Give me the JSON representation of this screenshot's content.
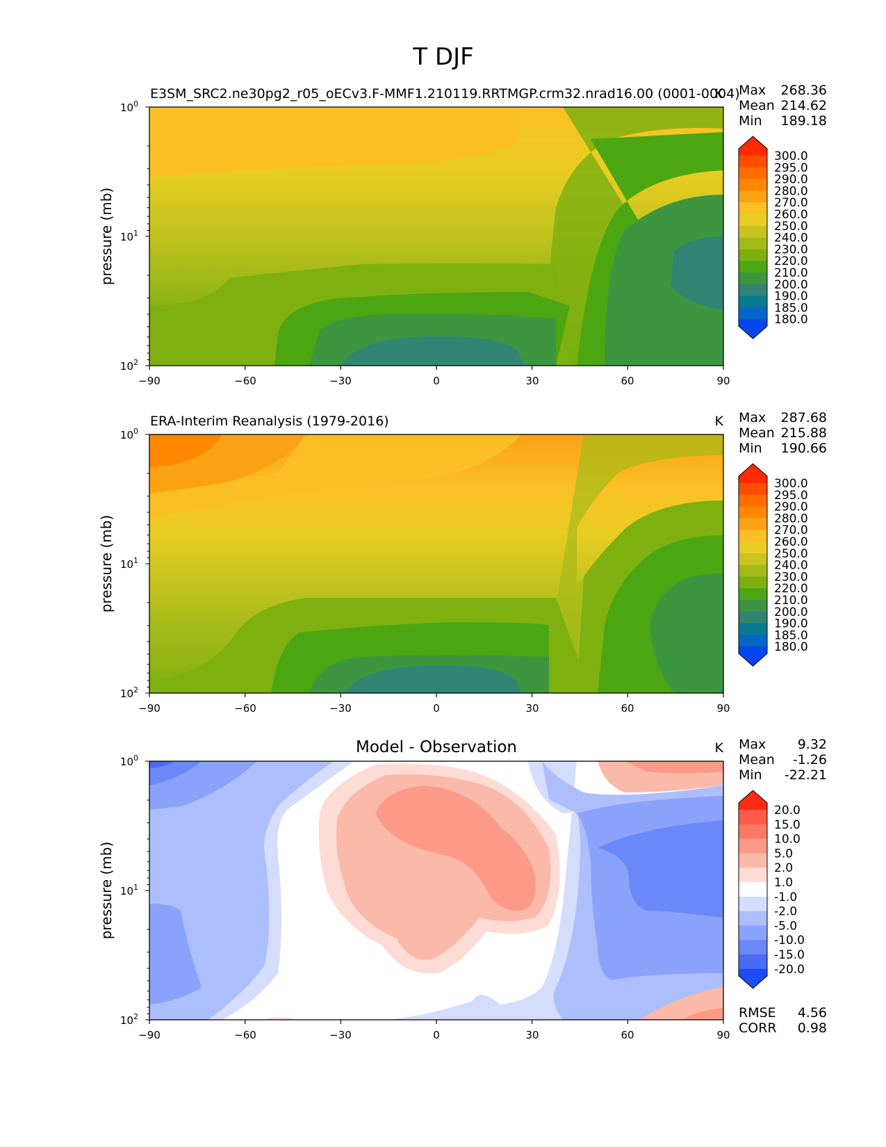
{
  "figure": {
    "title": "T DJF"
  },
  "chart_data": [
    {
      "type": "heatmap",
      "title": "E3SM_SRC2.ne30pg2_r05_oECv3.F-MMF1.210119.RRTMGP.crm32.nrad16.00 (0001-0004)",
      "units": "K",
      "xlabel": "",
      "ylabel": "pressure (mb)",
      "x_ticks": [
        "−90",
        "−60",
        "−30",
        "0",
        "30",
        "60",
        "90"
      ],
      "y_ticks": [
        {
          "base": "10",
          "exp": "0"
        },
        {
          "base": "10",
          "exp": "1"
        },
        {
          "base": "10",
          "exp": "2"
        }
      ],
      "xlim": [
        -90,
        90
      ],
      "ylim": [
        100,
        1
      ],
      "yscale": "log",
      "stats": {
        "max_label": "Max",
        "max": "268.36",
        "mean_label": "Mean",
        "mean": "214.62",
        "min_label": "Min",
        "min": "189.18"
      },
      "colorbar": {
        "labels": [
          "300.0",
          "295.0",
          "290.0",
          "280.0",
          "270.0",
          "260.0",
          "250.0",
          "240.0",
          "230.0",
          "220.0",
          "210.0",
          "200.0",
          "190.0",
          "185.0",
          "180.0"
        ],
        "colors": [
          "#ff2a00",
          "#ff4d00",
          "#ff6d00",
          "#ff8800",
          "#fba214",
          "#fbbf24",
          "#e9cc22",
          "#c9c41f",
          "#a4ba18",
          "#7eb010",
          "#4ca611",
          "#3d963f",
          "#318573",
          "#087990",
          "#0466c9",
          "#0545ee"
        ]
      }
    },
    {
      "type": "heatmap",
      "title": "ERA-Interim Reanalysis (1979-2016)",
      "units": "K",
      "xlabel": "",
      "ylabel": "pressure (mb)",
      "x_ticks": [
        "−90",
        "−60",
        "−30",
        "0",
        "30",
        "60",
        "90"
      ],
      "y_ticks": [
        {
          "base": "10",
          "exp": "0"
        },
        {
          "base": "10",
          "exp": "1"
        },
        {
          "base": "10",
          "exp": "2"
        }
      ],
      "xlim": [
        -90,
        90
      ],
      "ylim": [
        100,
        1
      ],
      "yscale": "log",
      "stats": {
        "max_label": "Max",
        "max": "287.68",
        "mean_label": "Mean",
        "mean": "215.88",
        "min_label": "Min",
        "min": "190.66"
      },
      "colorbar": {
        "labels": [
          "300.0",
          "295.0",
          "290.0",
          "280.0",
          "270.0",
          "260.0",
          "250.0",
          "240.0",
          "230.0",
          "220.0",
          "210.0",
          "200.0",
          "190.0",
          "185.0",
          "180.0"
        ],
        "colors": [
          "#ff2a00",
          "#ff4d00",
          "#ff6d00",
          "#ff8800",
          "#fba214",
          "#fbbf24",
          "#e9cc22",
          "#c9c41f",
          "#a4ba18",
          "#7eb010",
          "#4ca611",
          "#3d963f",
          "#318573",
          "#087990",
          "#0466c9",
          "#0545ee"
        ]
      }
    },
    {
      "type": "heatmap",
      "title": "Model - Observation",
      "units": "K",
      "xlabel": "",
      "ylabel": "pressure (mb)",
      "x_ticks": [
        "−90",
        "−60",
        "−30",
        "0",
        "30",
        "60",
        "90"
      ],
      "y_ticks": [
        {
          "base": "10",
          "exp": "0"
        },
        {
          "base": "10",
          "exp": "1"
        },
        {
          "base": "10",
          "exp": "2"
        }
      ],
      "xlim": [
        -90,
        90
      ],
      "ylim": [
        100,
        1
      ],
      "yscale": "log",
      "stats": {
        "max_label": "Max",
        "max": "9.32",
        "mean_label": "Mean",
        "mean": "-1.26",
        "min_label": "Min",
        "min": "-22.21"
      },
      "extra_stats": {
        "rmse_label": "RMSE",
        "rmse": "4.56",
        "corr_label": "CORR",
        "corr": "0.98"
      },
      "colorbar": {
        "labels": [
          "20.0",
          "15.0",
          "10.0",
          "5.0",
          "2.0",
          "1.0",
          "-1.0",
          "-2.0",
          "-5.0",
          "-10.0",
          "-15.0",
          "-20.0"
        ],
        "colors": [
          "#ff2a10",
          "#ff5a48",
          "#fe7866",
          "#fc9a88",
          "#fbb9aa",
          "#fddcd6",
          "#ffffff",
          "#d5ddfc",
          "#adbefc",
          "#8aa2fa",
          "#6a88f7",
          "#4a6cf4",
          "#1f4bf5"
        ]
      }
    }
  ]
}
